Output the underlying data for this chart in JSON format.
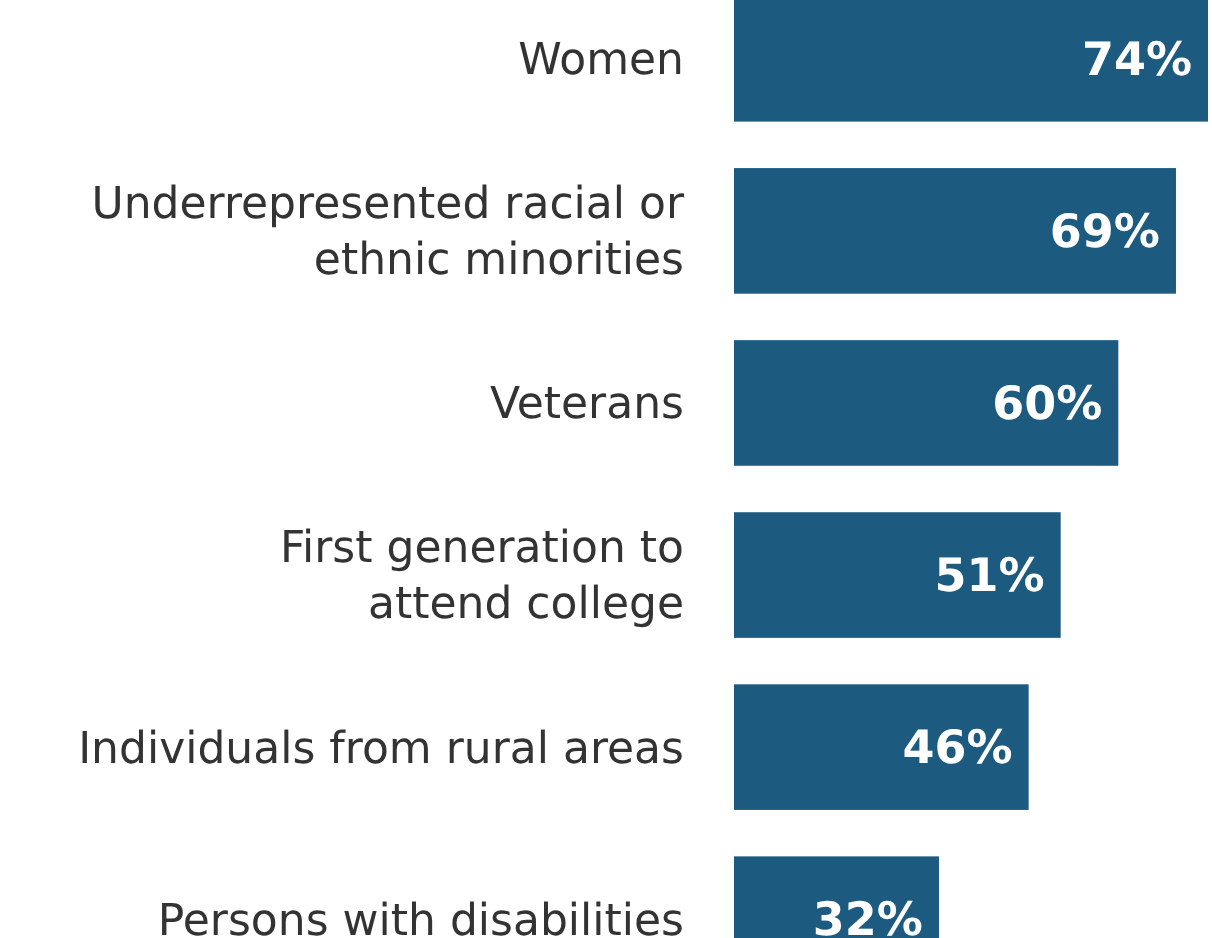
{
  "chart_data": {
    "type": "bar",
    "orientation": "horizontal",
    "categories": [
      "Women",
      "Underrepresented racial or\nethnic minorities",
      "Veterans",
      "First generation to\nattend college",
      "Individuals from rural areas",
      "Persons with disabilities"
    ],
    "values": [
      74,
      69,
      60,
      51,
      46,
      32
    ],
    "value_labels": [
      "74%",
      "69%",
      "60%",
      "51%",
      "46%",
      "32%"
    ],
    "color": "#1c5a80"
  }
}
